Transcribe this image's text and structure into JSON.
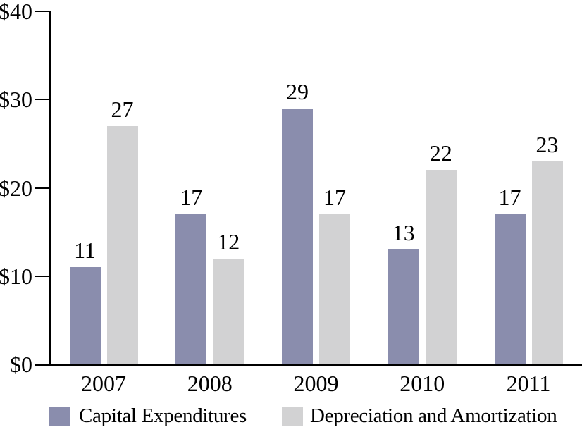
{
  "chart_data": {
    "type": "bar",
    "title": "",
    "xlabel": "",
    "ylabel": "",
    "categories": [
      "2007",
      "2008",
      "2009",
      "2010",
      "2011"
    ],
    "series": [
      {
        "name": "Capital Expenditures",
        "color": "#8a8dad",
        "values": [
          11,
          17,
          29,
          13,
          17
        ]
      },
      {
        "name": "Depreciation and Amortization",
        "color": "#d2d2d3",
        "values": [
          27,
          12,
          17,
          22,
          23
        ]
      }
    ],
    "ylim": [
      0,
      40
    ],
    "yticks": [
      {
        "value": 0,
        "label": "$0"
      },
      {
        "value": 10,
        "label": "$10"
      },
      {
        "value": 20,
        "label": "$20"
      },
      {
        "value": 30,
        "label": "$30"
      },
      {
        "value": 40,
        "label": "$40"
      }
    ],
    "bar_value_labels_shown": true,
    "grid": false,
    "legend_position": "bottom",
    "axis_color": "#000000",
    "text_color": "#000000",
    "background_color": "#ffffff"
  }
}
